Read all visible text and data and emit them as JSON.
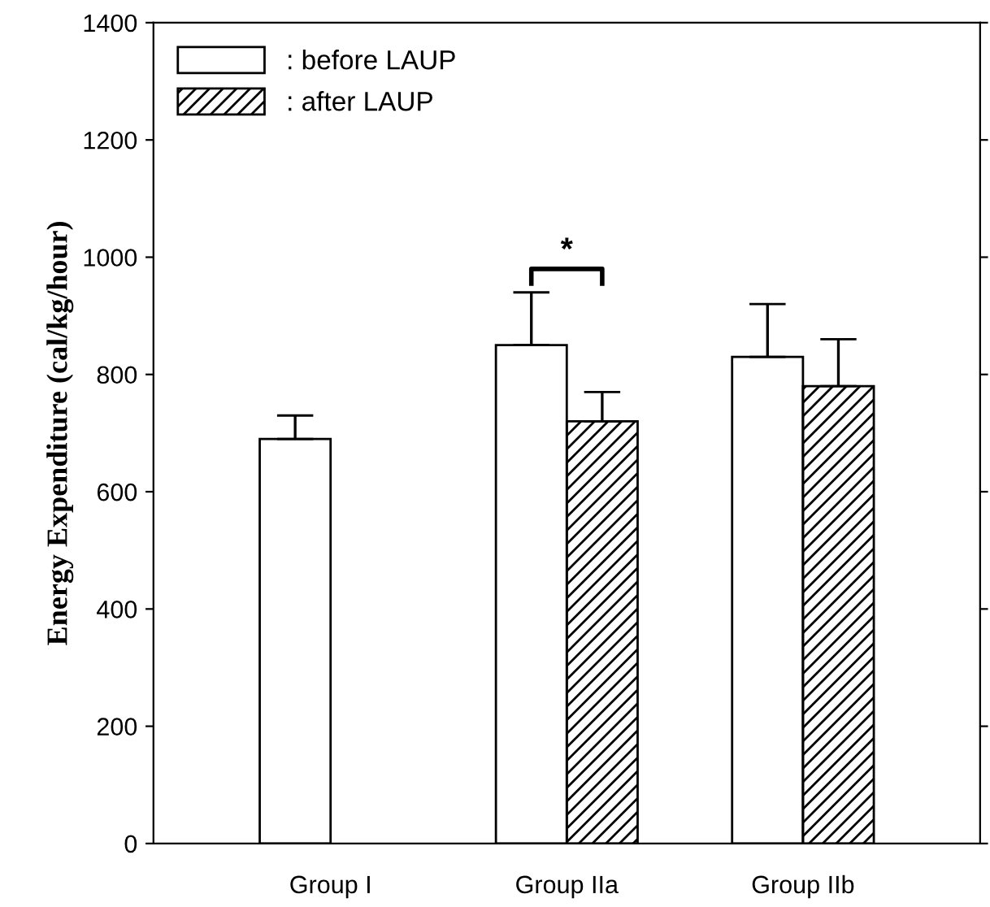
{
  "chart_data": {
    "type": "bar",
    "ylabel": "Energy Expenditure (cal/kg/hour)",
    "categories": [
      "Group I",
      "Group IIa",
      "Group IIb"
    ],
    "series": [
      {
        "name": ": before LAUP",
        "color": "#ffffff",
        "values": [
          690,
          850,
          830
        ],
        "errors": [
          [
            690,
            730
          ],
          [
            850,
            940
          ],
          [
            830,
            920
          ]
        ]
      },
      {
        "name": ": after LAUP",
        "color": "#000000",
        "values": [
          null,
          720,
          780
        ],
        "errors": [
          null,
          [
            720,
            770
          ],
          [
            780,
            860
          ]
        ]
      }
    ],
    "ylim": [
      0,
      1400
    ],
    "yticks": [
      0,
      200,
      400,
      600,
      800,
      1000,
      1200,
      1400
    ],
    "legend": "top left",
    "grid": false,
    "annotations": [
      "*"
    ]
  }
}
